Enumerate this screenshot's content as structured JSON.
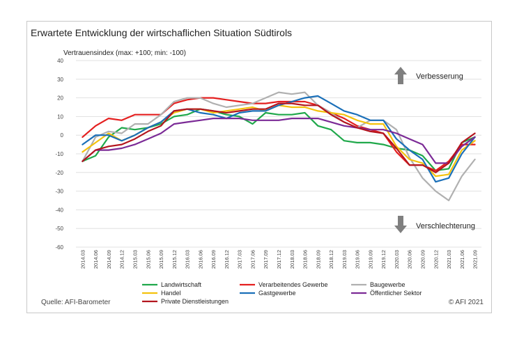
{
  "chart_data": {
    "type": "line",
    "title": "Erwartete Entwicklung der wirtschaflichen Situation Südtirols",
    "ylabel": "Vertrauensindex (max: +100; min: -100)",
    "xlabel": "",
    "ylim": [
      -60,
      40
    ],
    "yticks": [
      40,
      30,
      20,
      10,
      0,
      -10,
      -20,
      -30,
      -40,
      -50,
      -60
    ],
    "grid": true,
    "legend_position": "bottom",
    "categories": [
      "2014.03",
      "2014.06",
      "2014.09",
      "2014.12",
      "2015.03",
      "2015.06",
      "2015.09",
      "2015.12",
      "2016.03",
      "2016.06",
      "2016.09",
      "2016.12",
      "2017.03",
      "2017.06",
      "2017.09",
      "2017.12",
      "2018.03",
      "2018.06",
      "2018.09",
      "2018.12",
      "2019.03",
      "2019.06",
      "2019.09",
      "2019.12",
      "2020.03",
      "2020.06",
      "2020.09",
      "2020.12",
      "2021.03",
      "2021.06",
      "2021.09"
    ],
    "series": [
      {
        "name": "Landwirtschaft",
        "color": "#1fa84a",
        "values": [
          -14,
          -11,
          -1,
          4,
          3,
          4,
          6,
          10,
          11,
          14,
          13,
          11,
          10,
          6,
          12,
          11,
          11,
          12,
          5,
          3,
          -3,
          -4,
          -4,
          -5,
          -7,
          -8,
          -11,
          -19,
          -18,
          -4,
          -1
        ]
      },
      {
        "name": "Verarbeitendes Gewerbe",
        "color": "#e41f1f",
        "values": [
          -1,
          5,
          9,
          8,
          11,
          11,
          11,
          17,
          19,
          20,
          20,
          19,
          18,
          17,
          17,
          18,
          18,
          18,
          16,
          12,
          9,
          5,
          3,
          1,
          -9,
          -16,
          -16,
          -19,
          -14,
          -5,
          -5
        ]
      },
      {
        "name": "Baugewerbe",
        "color": "#b0b0b0",
        "values": [
          -14,
          -1,
          2,
          1,
          6,
          6,
          11,
          18,
          20,
          20,
          17,
          15,
          16,
          17,
          20,
          23,
          22,
          23,
          16,
          12,
          7,
          4,
          8,
          8,
          3,
          -12,
          -23,
          -30,
          -35,
          -22,
          -13
        ]
      },
      {
        "name": "Handel",
        "color": "#f4c20d",
        "values": [
          -9,
          -4,
          1,
          -3,
          0,
          4,
          7,
          12,
          14,
          14,
          12,
          13,
          14,
          15,
          13,
          16,
          15,
          15,
          13,
          12,
          11,
          8,
          6,
          6,
          -6,
          -13,
          -15,
          -22,
          -21,
          -8,
          -3
        ]
      },
      {
        "name": "Gastgewerbe",
        "color": "#1a6fb8",
        "values": [
          -5,
          0,
          0,
          -3,
          0,
          4,
          7,
          13,
          14,
          12,
          11,
          9,
          12,
          13,
          13,
          16,
          18,
          20,
          21,
          17,
          13,
          11,
          8,
          8,
          -2,
          -8,
          -13,
          -25,
          -23,
          -10,
          -1
        ]
      },
      {
        "name": "Öffentlicher Sektor",
        "color": "#7b2a96",
        "values": [
          -14,
          -8,
          -8,
          -7,
          -5,
          -2,
          1,
          6,
          7,
          8,
          9,
          9,
          9,
          8,
          8,
          8,
          9,
          9,
          9,
          7,
          5,
          4,
          3,
          3,
          1,
          -2,
          -5,
          -15,
          -15,
          -6,
          -1
        ]
      },
      {
        "name": "Private Dienstleistungen",
        "color": "#b3151e",
        "values": [
          -14,
          -8,
          -6,
          -5,
          -2,
          2,
          5,
          13,
          14,
          14,
          13,
          12,
          13,
          14,
          14,
          17,
          17,
          16,
          16,
          11,
          7,
          4,
          2,
          1,
          -7,
          -16,
          -16,
          -20,
          -15,
          -4,
          1
        ]
      }
    ],
    "annotations": {
      "up": "Verbesserung",
      "down": "Verschlechterung"
    },
    "source": "Quelle: AFI-Barometer",
    "copyright": "© AFI 2021"
  }
}
